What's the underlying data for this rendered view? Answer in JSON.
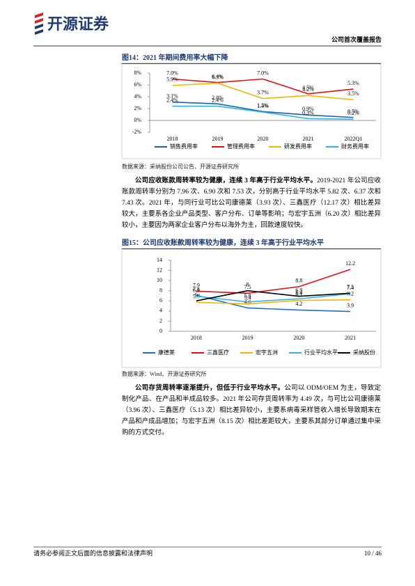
{
  "header": {
    "logo": "开源证券",
    "report_type": "公司首次覆盖报告"
  },
  "chart_data": [
    {
      "type": "line",
      "title": "图14：2021 年期间费用率大幅下降",
      "categories": [
        "2018",
        "2019",
        "2020",
        "2021",
        "2022Q1"
      ],
      "ylim": [
        -2,
        8
      ],
      "yticks": [
        {
          "value": 8,
          "label": "8%"
        },
        {
          "value": 6,
          "label": "6%"
        },
        {
          "value": 4,
          "label": "4%"
        },
        {
          "value": 2,
          "label": "2%"
        },
        {
          "value": 0,
          "label": "0%"
        },
        {
          "value": -2,
          "label": "-2%"
        }
      ],
      "series": [
        {
          "name": "销售费用率",
          "color": "#1f5fa8",
          "values": [
            3.1,
            2.8,
            1.5,
            0.9,
            0.5
          ],
          "value_labels": [
            "3.1%",
            "2.8%",
            "1.5%",
            "0.9%",
            "0.5%"
          ]
        },
        {
          "name": "管理费用率",
          "color": "#e01010",
          "values": [
            7.0,
            6.4,
            7.0,
            4.5,
            5.3
          ],
          "value_labels": [
            "7.0%",
            "6.4%",
            "7.0%",
            "4.5%",
            "5.3%"
          ]
        },
        {
          "name": "研发费用率",
          "color": "#f5b400",
          "values": [
            5.9,
            6.3,
            3.7,
            4.2,
            3.5
          ],
          "value_labels": [
            "5.9%",
            "6.3%",
            "3.7%",
            "4.2%",
            "3.5%"
          ]
        },
        {
          "name": "财务费用率",
          "color": "#2eb2e8",
          "values": [
            2.4,
            2.4,
            1.4,
            0.3,
            0.2
          ],
          "value_labels": [
            "2.4%",
            "2.4%",
            "1.4%",
            "0.3%",
            "0.2%"
          ]
        }
      ]
    },
    {
      "type": "line",
      "title": "图15：公司应收账款周转率较为健康，连续 3 年高于行业平均水平",
      "categories": [
        "2018",
        "2019",
        "2020",
        "2021"
      ],
      "ylim": [
        0,
        14
      ],
      "yticks": [
        14,
        12,
        10,
        8,
        6,
        4,
        2,
        0
      ],
      "series": [
        {
          "name": "康德莱",
          "color": "#1f6fc0",
          "values": [
            7.1,
            4.6,
            4.2,
            3.9
          ]
        },
        {
          "name": "三鑫医疗",
          "color": "#e01010",
          "values": [
            7.9,
            7.5,
            8.8,
            12.2
          ]
        },
        {
          "name": "宏宇五洲",
          "color": "#f5b400",
          "values": [
            5.7,
            5.4,
            6.1,
            6.2
          ]
        },
        {
          "name": "行业平均水平",
          "color": "#2eb2e8",
          "values": [
            6.9,
            5.8,
            6.4,
            7.4
          ]
        },
        {
          "name": "采纳股份",
          "color": "#000000",
          "values": [
            6.0,
            8.0,
            6.9,
            7.5
          ]
        }
      ]
    }
  ],
  "sources": [
    "数据来源：采纳股份公司公告、开源证券研究所",
    "数据来源：Wind、开源证券研究所"
  ],
  "paragraphs": [
    {
      "lead": "公司应收账款周转率较为健康，连续 3 年高于行业平均水平。",
      "text": "2019-2021 年公司应收账款周转率分别为 7.96 次、6.90 次和 7.53 次，分别高于行业平均水平 5.82 次、6.37 次和 7.43 次。2021 年，与同行业可比公司康德莱（3.93 次）、三鑫医疗（12.17 次）相比差异较大，主要系各企业产品类型、客户分布、订单等影响；与宏宇五洲（6.20 次）相比差异较小，主要因为两家企业客户分布以海外为主，回款速度较快。"
    },
    {
      "lead": "公司存货周转率逐渐提升，但低于行业平均水平。",
      "text": "公司以 ODM/OEM 为主，导致定制化产品、在产品和半成品较多。2021 年公司存货周转率为 4.49 次，与可比公司康德莱（3.96 次）、三鑫医疗（5.13 次）相比差异较小，主要系病毒采样管收入增长导致期末在产品和产成品增加；与宏宇五洲（8.15 次）相比差距较大，主要系其部分订单通过集中采购的方式交付。"
    }
  ],
  "footer": {
    "disclaimer": "请务必参阅正文后面的信息披露和法律声明",
    "page": "10 / 46"
  }
}
